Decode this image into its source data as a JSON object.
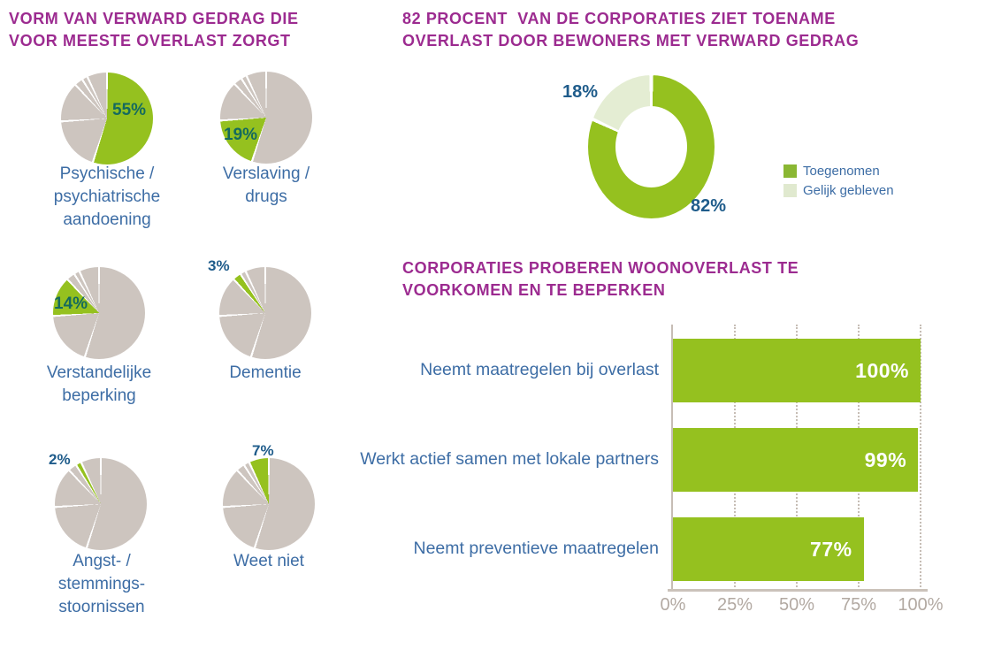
{
  "palette": {
    "green": "#95c11f",
    "light_green": "#e4edd3",
    "legend_green": "#8ab733",
    "legend_light": "#e0e9cf",
    "grey": "#cdc5bf",
    "purple": "#9c2b90",
    "blue": "#3d6da5",
    "dark_blue": "#1f5c8b",
    "teal": "#156a5e",
    "axis_grey": "#c6bdb5",
    "tick_text": "#b2a9a2"
  },
  "left_section": {
    "title": "VORM VAN VERWARD GEDRAG DIE\nVOOR MEESTE OVERLAST ZORGT",
    "pies": [
      {
        "pct": "55%",
        "caption": "Psychische /\npsychiatrische\naandoening"
      },
      {
        "pct": "19%",
        "caption": "Verslaving /\ndrugs"
      },
      {
        "pct": "14%",
        "caption": "Verstandelijke\nbeperking"
      },
      {
        "pct": "3%",
        "caption": "Dementie"
      },
      {
        "pct": "2%",
        "caption": "Angst- /\nstemmings-\nstoornissen"
      },
      {
        "pct": "7%",
        "caption": "Weet niet"
      }
    ]
  },
  "donut_section": {
    "title": "82 PROCENT  VAN DE CORPORATIES ZIET TOENAME\nOVERLAST DOOR BEWONERS MET VERWARD GEDRAG",
    "pct_small": "18%",
    "pct_large": "82%",
    "legend": [
      {
        "label": "Toegenomen"
      },
      {
        "label": "Gelijk gebleven"
      }
    ]
  },
  "bars_section": {
    "title": "CORPORATIES PROBEREN WOONOVERLAST TE\nVOORKOMEN EN TE BEPERKEN",
    "rows": [
      {
        "label": "Neemt maatregelen bij overlast",
        "value_label": "100%"
      },
      {
        "label": "Werkt actief samen met lokale partners",
        "value_label": "99%"
      },
      {
        "label": "Neemt preventieve maatregelen",
        "value_label": "77%"
      }
    ],
    "ticks": [
      "0%",
      "25%",
      "50%",
      "75%",
      "100%"
    ]
  },
  "chart_data": [
    {
      "id": "verward-gedrag-pies",
      "type": "pie",
      "title": "VORM VAN VERWARD GEDRAG DIE VOOR MEESTE OVERLAST ZORGT",
      "categories": [
        "Psychische / psychiatrische aandoening",
        "Verslaving / drugs",
        "Verstandelijke beperking",
        "Dementie",
        "Angst- / stemmingsstoornissen",
        "Weet niet"
      ],
      "values": [
        55,
        19,
        14,
        3,
        2,
        7
      ],
      "unit": "%",
      "layout": "six small-multiple pies sharing the same data; each pie highlights its own category slice in green, other slices grey, white slice separators, slices start at 12 o'clock clockwise"
    },
    {
      "id": "toename-donut",
      "type": "pie",
      "donut": true,
      "title": "82 PROCENT VAN DE CORPORATIES ZIET TOENAME OVERLAST DOOR BEWONERS MET VERWARD GEDRAG",
      "categories": [
        "Toegenomen",
        "Gelijk gebleven"
      ],
      "values": [
        82,
        18
      ],
      "unit": "%",
      "legend_position": "right",
      "layout": "green 82% slice starts at 12 o'clock clockwise; light-green 18% slice at upper left; labels outside"
    },
    {
      "id": "maatregelen-bars",
      "type": "bar",
      "orientation": "horizontal",
      "title": "CORPORATIES PROBEREN WOONOVERLAST TE VOORKOMEN EN TE BEPERKEN",
      "categories": [
        "Neemt maatregelen bij overlast",
        "Werkt actief samen met lokale partners",
        "Neemt preventieve maatregelen"
      ],
      "values": [
        100,
        99,
        77
      ],
      "unit": "%",
      "xlim": [
        0,
        100
      ],
      "xticks": [
        "0%",
        "25%",
        "50%",
        "75%",
        "100%"
      ],
      "grid": "dotted vertical gridlines at 25/50/75/100, solid line at 0, value labels in white inside bar ends"
    }
  ]
}
